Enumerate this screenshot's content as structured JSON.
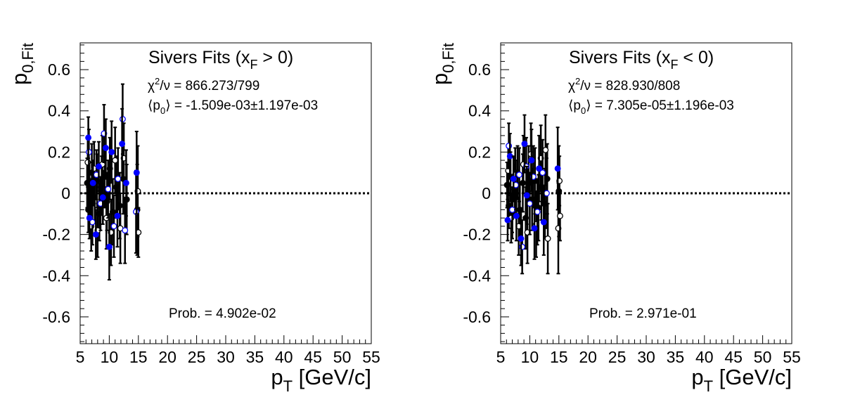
{
  "chart_data": [
    {
      "type": "scatter",
      "title": "Sivers Fits (x_F > 0)",
      "title_parts": {
        "main": "Sivers Fits (x",
        "sub": "F",
        "tail": " > 0)"
      },
      "xlabel": "p_T [GeV/c]",
      "xlabel_parts": {
        "main": "p",
        "sub": "T",
        "tail": " [GeV/c]"
      },
      "ylabel": "p_0,Fit",
      "ylabel_parts": {
        "main": "p",
        "sub": "0,Fit"
      },
      "xlim": [
        5,
        55
      ],
      "ylim": [
        -0.73,
        0.73
      ],
      "xticks": [
        "5",
        "10",
        "15",
        "20",
        "25",
        "30",
        "35",
        "40",
        "45",
        "50",
        "55"
      ],
      "yticks": [
        "-0.6",
        "-0.4",
        "-0.2",
        "0",
        "0.2",
        "0.4",
        "0.6"
      ],
      "chi2": {
        "main": "χ",
        "sup": "2",
        "tail": "/ν = 866.273/799"
      },
      "mean_p0": {
        "open": "⟨p",
        "sub": "0",
        "tail": "⟩ = -1.509e-03±1.197e-03"
      },
      "prob": "Prob. = 4.902e-02",
      "reference_line": 0,
      "points_black_filled": [
        {
          "x": 6.2,
          "y": 0.05,
          "e": 0.12
        },
        {
          "x": 6.4,
          "y": -0.08,
          "e": 0.11
        },
        {
          "x": 6.6,
          "y": 0.02,
          "e": 0.13
        },
        {
          "x": 6.8,
          "y": -0.05,
          "e": 0.12
        },
        {
          "x": 7.0,
          "y": 0.1,
          "e": 0.14
        },
        {
          "x": 7.5,
          "y": -0.02,
          "e": 0.12
        },
        {
          "x": 7.9,
          "y": 0.06,
          "e": 0.13
        },
        {
          "x": 8.3,
          "y": -0.1,
          "e": 0.13
        },
        {
          "x": 8.7,
          "y": 0.04,
          "e": 0.14
        },
        {
          "x": 9.2,
          "y": 0.08,
          "e": 0.15
        },
        {
          "x": 9.6,
          "y": -0.04,
          "e": 0.14
        },
        {
          "x": 10.1,
          "y": 0.12,
          "e": 0.15
        },
        {
          "x": 10.6,
          "y": -0.09,
          "e": 0.16
        },
        {
          "x": 11.2,
          "y": 0.03,
          "e": 0.15
        },
        {
          "x": 11.8,
          "y": -0.06,
          "e": 0.16
        },
        {
          "x": 12.4,
          "y": 0.07,
          "e": 0.17
        },
        {
          "x": 13.0,
          "y": -0.03,
          "e": 0.17
        },
        {
          "x": 14.8,
          "y": -0.08,
          "e": 0.22
        }
      ],
      "points_black_open": [
        {
          "x": 6.3,
          "y": 0.15,
          "e": 0.12
        },
        {
          "x": 6.9,
          "y": -0.16,
          "e": 0.12
        },
        {
          "x": 7.4,
          "y": 0.12,
          "e": 0.13
        },
        {
          "x": 8.0,
          "y": -0.18,
          "e": 0.13
        },
        {
          "x": 8.8,
          "y": 0.14,
          "e": 0.14
        },
        {
          "x": 9.5,
          "y": -0.12,
          "e": 0.15
        },
        {
          "x": 10.3,
          "y": -0.19,
          "e": 0.16
        },
        {
          "x": 11.0,
          "y": 0.16,
          "e": 0.16
        },
        {
          "x": 11.9,
          "y": -0.17,
          "e": 0.17
        },
        {
          "x": 12.5,
          "y": 0.17,
          "e": 0.17
        },
        {
          "x": 14.9,
          "y": 0.01,
          "e": 0.22
        },
        {
          "x": 15.0,
          "y": -0.19,
          "e": 0.12
        }
      ],
      "points_blue_filled": [
        {
          "x": 6.4,
          "y": 0.27,
          "e": 0.1
        },
        {
          "x": 6.6,
          "y": -0.12,
          "e": 0.1
        },
        {
          "x": 7.2,
          "y": 0.05,
          "e": 0.11
        },
        {
          "x": 7.7,
          "y": -0.2,
          "e": 0.12
        },
        {
          "x": 8.2,
          "y": 0.13,
          "e": 0.12
        },
        {
          "x": 8.9,
          "y": -0.02,
          "e": 0.13
        },
        {
          "x": 9.4,
          "y": 0.22,
          "e": 0.14
        },
        {
          "x": 10.0,
          "y": -0.26,
          "e": 0.16
        },
        {
          "x": 10.4,
          "y": 0.2,
          "e": 0.15
        },
        {
          "x": 11.4,
          "y": -0.11,
          "e": 0.15
        },
        {
          "x": 12.2,
          "y": 0.24,
          "e": 0.17
        },
        {
          "x": 12.9,
          "y": 0.05,
          "e": 0.16
        },
        {
          "x": 14.7,
          "y": 0.1,
          "e": 0.2
        }
      ],
      "points_blue_open": [
        {
          "x": 6.5,
          "y": 0.2,
          "e": 0.11
        },
        {
          "x": 7.1,
          "y": -0.14,
          "e": 0.11
        },
        {
          "x": 7.8,
          "y": 0.09,
          "e": 0.12
        },
        {
          "x": 8.5,
          "y": -0.05,
          "e": 0.13
        },
        {
          "x": 9.1,
          "y": 0.29,
          "e": 0.14
        },
        {
          "x": 9.8,
          "y": 0.02,
          "e": 0.14
        },
        {
          "x": 10.8,
          "y": -0.16,
          "e": 0.15
        },
        {
          "x": 11.5,
          "y": 0.07,
          "e": 0.15
        },
        {
          "x": 12.3,
          "y": 0.36,
          "e": 0.17
        },
        {
          "x": 12.7,
          "y": -0.18,
          "e": 0.16
        },
        {
          "x": 14.6,
          "y": -0.09,
          "e": 0.2
        }
      ]
    },
    {
      "type": "scatter",
      "title": "Sivers Fits (x_F < 0)",
      "title_parts": {
        "main": "Sivers Fits (x",
        "sub": "F",
        "tail": " < 0)"
      },
      "xlabel": "p_T [GeV/c]",
      "xlabel_parts": {
        "main": "p",
        "sub": "T",
        "tail": " [GeV/c]"
      },
      "ylabel": "p_0,Fit",
      "ylabel_parts": {
        "main": "p",
        "sub": "0,Fit"
      },
      "xlim": [
        5,
        55
      ],
      "ylim": [
        -0.73,
        0.73
      ],
      "xticks": [
        "5",
        "10",
        "15",
        "20",
        "25",
        "30",
        "35",
        "40",
        "45",
        "50",
        "55"
      ],
      "yticks": [
        "-0.6",
        "-0.4",
        "-0.2",
        "0",
        "0.2",
        "0.4",
        "0.6"
      ],
      "chi2": {
        "main": "χ",
        "sup": "2",
        "tail": "/ν = 828.930/808"
      },
      "mean_p0": {
        "open": "⟨p",
        "sub": "0",
        "tail": "⟩ = 7.305e-05±1.196e-03"
      },
      "prob": "Prob. = 2.971e-01",
      "reference_line": 0,
      "points_black_filled": [
        {
          "x": 6.1,
          "y": 0.04,
          "e": 0.11
        },
        {
          "x": 6.4,
          "y": -0.06,
          "e": 0.11
        },
        {
          "x": 6.7,
          "y": 0.08,
          "e": 0.12
        },
        {
          "x": 7.0,
          "y": -0.1,
          "e": 0.12
        },
        {
          "x": 7.4,
          "y": 0.02,
          "e": 0.12
        },
        {
          "x": 7.9,
          "y": 0.1,
          "e": 0.13
        },
        {
          "x": 8.3,
          "y": -0.08,
          "e": 0.13
        },
        {
          "x": 8.8,
          "y": 0.05,
          "e": 0.14
        },
        {
          "x": 9.3,
          "y": -0.12,
          "e": 0.15
        },
        {
          "x": 9.8,
          "y": 0.09,
          "e": 0.14
        },
        {
          "x": 10.4,
          "y": -0.03,
          "e": 0.15
        },
        {
          "x": 10.9,
          "y": 0.06,
          "e": 0.16
        },
        {
          "x": 11.5,
          "y": -0.07,
          "e": 0.16
        },
        {
          "x": 12.0,
          "y": 0.03,
          "e": 0.16
        },
        {
          "x": 12.6,
          "y": -0.05,
          "e": 0.17
        },
        {
          "x": 13.0,
          "y": 0.07,
          "e": 0.17
        },
        {
          "x": 15.0,
          "y": 0.01,
          "e": 0.22
        }
      ],
      "points_black_open": [
        {
          "x": 6.3,
          "y": 0.11,
          "e": 0.12
        },
        {
          "x": 6.8,
          "y": -0.12,
          "e": 0.12
        },
        {
          "x": 7.5,
          "y": 0.09,
          "e": 0.13
        },
        {
          "x": 8.1,
          "y": -0.16,
          "e": 0.14
        },
        {
          "x": 8.9,
          "y": 0.14,
          "e": 0.14
        },
        {
          "x": 9.6,
          "y": -0.19,
          "e": 0.15
        },
        {
          "x": 10.2,
          "y": 0.19,
          "e": 0.15
        },
        {
          "x": 11.1,
          "y": -0.15,
          "e": 0.16
        },
        {
          "x": 11.9,
          "y": 0.17,
          "e": 0.16
        },
        {
          "x": 12.7,
          "y": 0.21,
          "e": 0.17
        },
        {
          "x": 13.1,
          "y": -0.22,
          "e": 0.17
        },
        {
          "x": 14.9,
          "y": -0.17,
          "e": 0.22
        },
        {
          "x": 15.1,
          "y": 0.06,
          "e": 0.12
        },
        {
          "x": 15.2,
          "y": -0.11,
          "e": 0.12
        }
      ],
      "points_blue_filled": [
        {
          "x": 6.2,
          "y": -0.13,
          "e": 0.1
        },
        {
          "x": 6.6,
          "y": 0.18,
          "e": 0.11
        },
        {
          "x": 7.2,
          "y": 0.07,
          "e": 0.11
        },
        {
          "x": 7.7,
          "y": -0.11,
          "e": 0.12
        },
        {
          "x": 8.5,
          "y": -0.22,
          "e": 0.13
        },
        {
          "x": 9.1,
          "y": 0.24,
          "e": 0.14
        },
        {
          "x": 9.5,
          "y": -0.01,
          "e": 0.14
        },
        {
          "x": 10.3,
          "y": 0.16,
          "e": 0.15
        },
        {
          "x": 10.8,
          "y": -0.17,
          "e": 0.15
        },
        {
          "x": 11.6,
          "y": 0.12,
          "e": 0.16
        },
        {
          "x": 12.4,
          "y": -0.14,
          "e": 0.16
        },
        {
          "x": 14.8,
          "y": 0.12,
          "e": 0.2
        }
      ],
      "points_blue_open": [
        {
          "x": 6.4,
          "y": 0.23,
          "e": 0.11
        },
        {
          "x": 7.0,
          "y": -0.08,
          "e": 0.11
        },
        {
          "x": 7.6,
          "y": 0.04,
          "e": 0.12
        },
        {
          "x": 8.2,
          "y": 0.09,
          "e": 0.13
        },
        {
          "x": 8.7,
          "y": -0.26,
          "e": 0.13
        },
        {
          "x": 9.4,
          "y": 0.13,
          "e": 0.14
        },
        {
          "x": 10.0,
          "y": -0.05,
          "e": 0.15
        },
        {
          "x": 10.6,
          "y": 0.08,
          "e": 0.15
        },
        {
          "x": 11.3,
          "y": -0.09,
          "e": 0.16
        },
        {
          "x": 12.2,
          "y": 0.1,
          "e": 0.16
        },
        {
          "x": 12.9,
          "y": 0.0,
          "e": 0.17
        }
      ]
    }
  ]
}
